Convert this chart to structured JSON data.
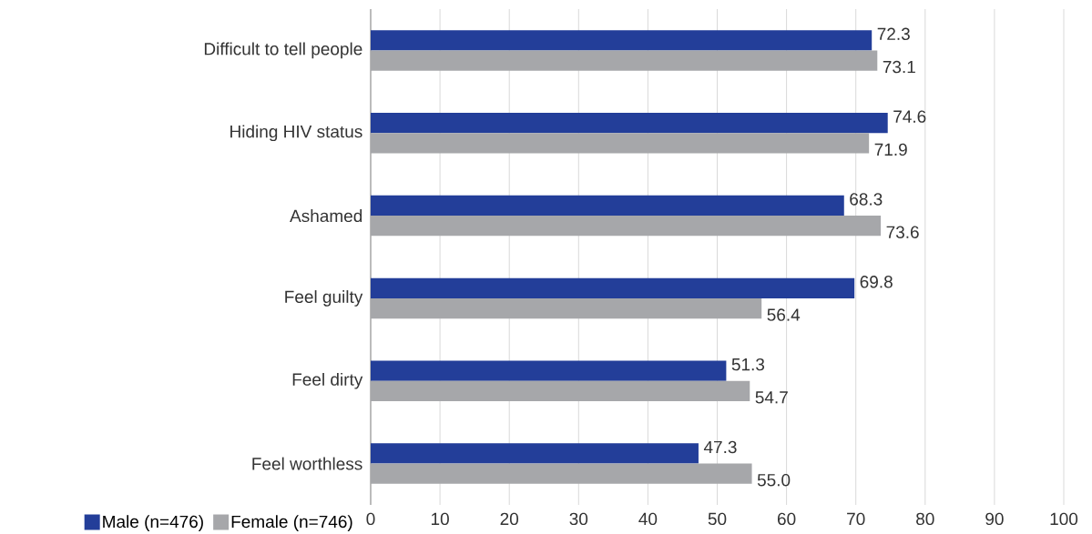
{
  "chart_data": {
    "type": "bar",
    "orientation": "horizontal",
    "categories": [
      "Difficult to tell people",
      "Hiding HIV status",
      "Ashamed",
      "Feel guilty",
      "Feel dirty",
      "Feel worthless"
    ],
    "series": [
      {
        "name": "Male (n=476)",
        "color": "#233e99",
        "values": [
          72.3,
          74.6,
          68.3,
          69.8,
          51.3,
          47.3
        ],
        "value_labels": [
          "72.3",
          "74.6",
          "68.3",
          "69.8",
          "51.3",
          "47.3"
        ]
      },
      {
        "name": "Female (n=746)",
        "color": "#a6a7aa",
        "values": [
          73.1,
          71.9,
          73.6,
          56.4,
          54.7,
          55.0
        ],
        "value_labels": [
          "73.1",
          "71.9",
          "73.6",
          "56.4",
          "54.7",
          "55.0"
        ]
      }
    ],
    "xlim": [
      0,
      100
    ],
    "xticks": [
      0,
      10,
      20,
      30,
      40,
      50,
      60,
      70,
      80,
      90,
      100
    ],
    "grid": "x",
    "legend": "bottom left"
  }
}
